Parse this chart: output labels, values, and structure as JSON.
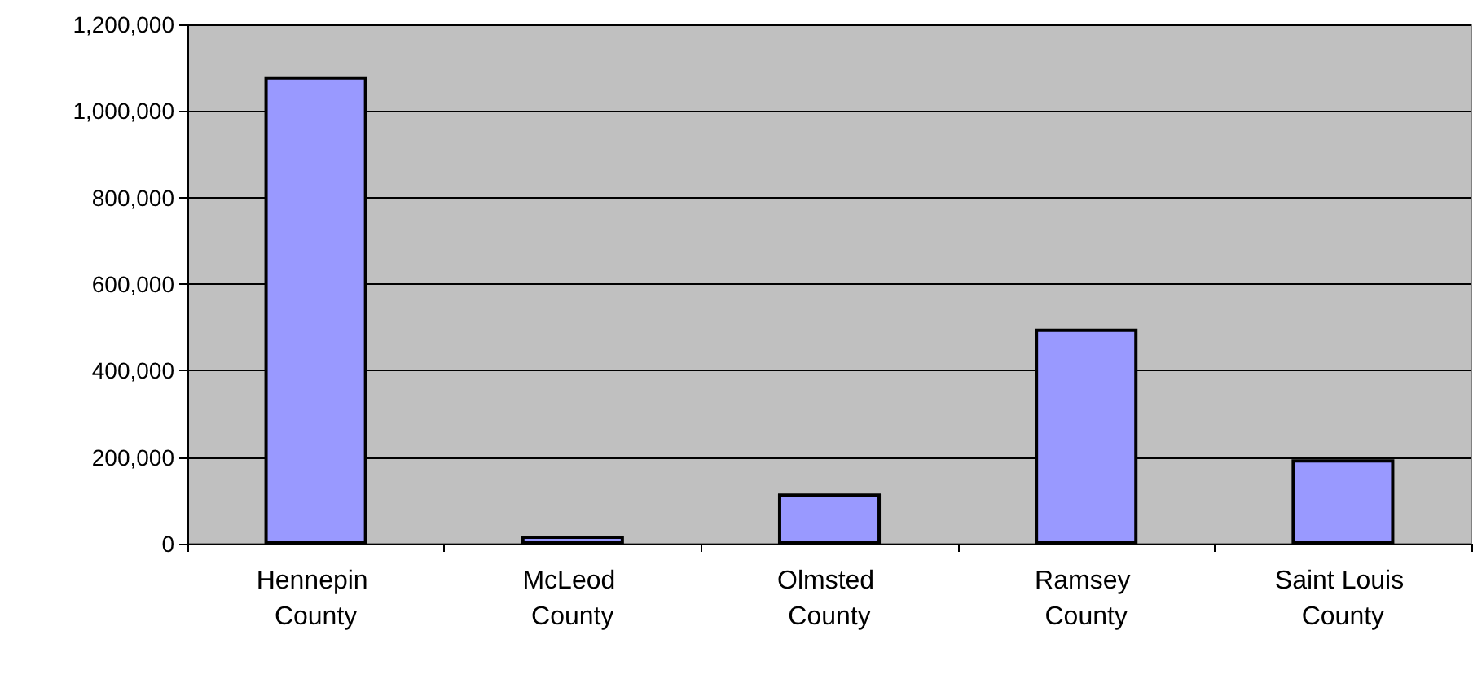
{
  "chart_data": {
    "type": "bar",
    "categories": [
      "Hennepin County",
      "McLeod County",
      "Olmsted County",
      "Ramsey County",
      "Saint Louis County"
    ],
    "values": [
      1080000,
      19000,
      116000,
      497000,
      195000
    ],
    "color": "#9999ff",
    "ylim": [
      0,
      1200000
    ],
    "yticks": [
      {
        "value": 0,
        "label": "0"
      },
      {
        "value": 200000,
        "label": "200,000"
      },
      {
        "value": 400000,
        "label": "400,000"
      },
      {
        "value": 600000,
        "label": "600,000"
      },
      {
        "value": 800000,
        "label": "800,000"
      },
      {
        "value": 1000000,
        "label": "1,000,000"
      },
      {
        "value": 1200000,
        "label": "1,200,000"
      }
    ],
    "grid": "y"
  }
}
